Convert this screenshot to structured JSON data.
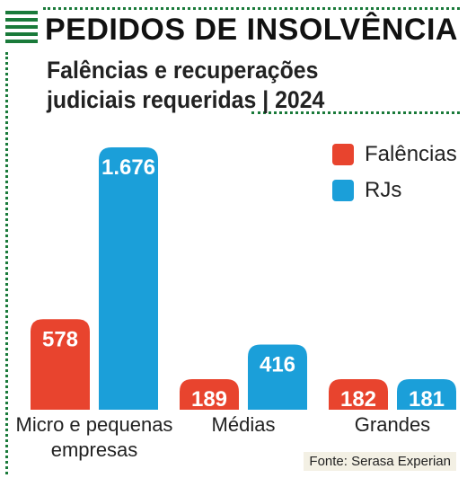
{
  "title": "PEDIDOS DE INSOLVÊNCIA",
  "subtitle": "Falências e recuperações judiciais requeridas | 2024",
  "source": "Fonte: Serasa Experian",
  "colors": {
    "falencias": "#e8442e",
    "rjs": "#1b9fd9",
    "accent": "#1a7a3a"
  },
  "chart_data": {
    "type": "bar",
    "categories": [
      "Micro e pequenas empresas",
      "Médias",
      "Grandes"
    ],
    "series": [
      {
        "name": "Falências",
        "values": [
          578,
          189,
          182
        ],
        "labels": [
          "578",
          "189",
          "182"
        ]
      },
      {
        "name": "RJs",
        "values": [
          1676,
          416,
          181
        ],
        "labels": [
          "1.676",
          "416",
          "181"
        ]
      }
    ]
  }
}
